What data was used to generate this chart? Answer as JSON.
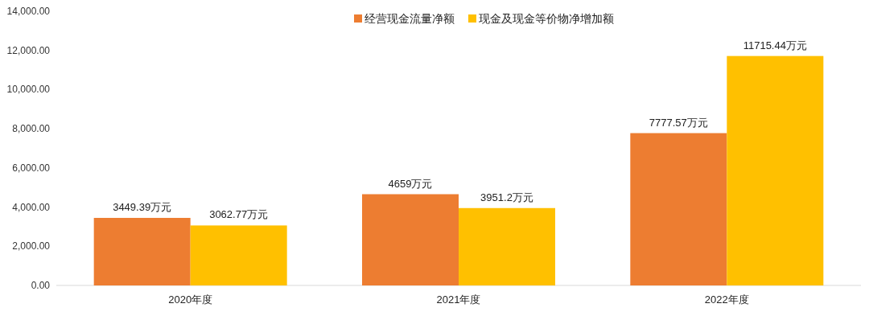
{
  "chart_data": {
    "type": "bar",
    "categories": [
      "2020年度",
      "2021年度",
      "2022年度"
    ],
    "series": [
      {
        "name": "经营现金流量净额",
        "color": "#ed7d31",
        "values": [
          3449.39,
          4659,
          7777.57
        ],
        "value_labels": [
          "3449.39万元",
          "4659万元",
          "7777.57万元"
        ]
      },
      {
        "name": "现金及现金等价物净增加额",
        "color": "#ffc000",
        "values": [
          3062.77,
          3951.2,
          11715.44
        ],
        "value_labels": [
          "3062.77万元",
          "3951.2万元",
          "11715.44万元"
        ]
      }
    ],
    "ylim": [
      0,
      14000
    ],
    "yticks": [
      {
        "value": 0,
        "label": "0.00"
      },
      {
        "value": 2000,
        "label": "2,000.00"
      },
      {
        "value": 4000,
        "label": "4,000.00"
      },
      {
        "value": 6000,
        "label": "6,000.00"
      },
      {
        "value": 8000,
        "label": "8,000.00"
      },
      {
        "value": 10000,
        "label": "10,000.00"
      },
      {
        "value": 12000,
        "label": "12,000.00"
      },
      {
        "value": 14000,
        "label": "14,000.00"
      }
    ],
    "legend": "top"
  }
}
